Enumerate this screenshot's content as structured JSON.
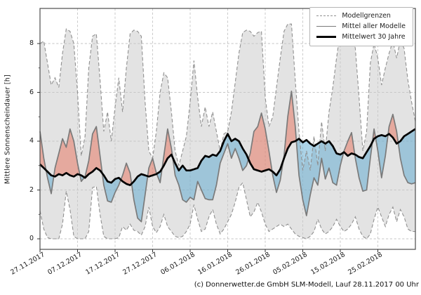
{
  "figure": {
    "y_axis": {
      "label": "Mittlere Sonnenscheindauer [h]",
      "tick_values": [
        0,
        2,
        4,
        6,
        8
      ]
    },
    "x_axis": {
      "tick_labels": [
        "27.11.2017",
        "07.12.2017",
        "17.12.2017",
        "27.12.2017",
        "06.01.2018",
        "16.01.2018",
        "26.01.2018",
        "05.02.2018",
        "15.02.2018",
        "25.02.2018"
      ],
      "tick_days": [
        0,
        10,
        20,
        30,
        40,
        50,
        60,
        70,
        80,
        90
      ]
    },
    "legend": {
      "items": [
        {
          "label": "Modellgrenzen",
          "style": "dashed-gray"
        },
        {
          "label": "Mittel aller Modelle",
          "style": "solid-gray"
        },
        {
          "label": "Mittelwert 30 Jahre",
          "style": "thick-black"
        }
      ]
    },
    "footer": "(c) Donnerwetter.de GmbH SLM-Modell, Lauf 28.11.2017 00 Uhr",
    "colors": {
      "envelope_fill": "#e3e3e3",
      "bound_line": "#909090",
      "model_mean_line": "#7a7a7a",
      "climate_mean_line": "#000000",
      "above_fill": "#e8705a",
      "below_fill": "#5aa7cf",
      "grid": "#c6c6c6",
      "frame": "#4d4d4d",
      "tick": "#333333"
    }
  },
  "chart_data": {
    "type": "line",
    "title": "",
    "xlabel": "",
    "ylabel": "Mittlere Sonnenscheindauer [h]",
    "x_range": {
      "start": 0,
      "end": 100,
      "step": 1,
      "unit": "days",
      "start_date": "27.11.2017"
    },
    "ylim": [
      -0.43,
      9.44
    ],
    "grid": true,
    "legend_position": "upper right",
    "series": [
      {
        "name": "Modellgrenzen (obere Grenze)",
        "style": "dashed",
        "values": [
          8.0,
          8.1,
          7.2,
          6.3,
          6.6,
          6.2,
          7.6,
          8.6,
          8.5,
          8.0,
          6.0,
          3.4,
          4.2,
          7.0,
          8.3,
          8.4,
          6.5,
          4.4,
          5.2,
          4.0,
          5.4,
          6.6,
          5.2,
          7.0,
          8.4,
          8.55,
          8.5,
          8.3,
          5.6,
          3.6,
          3.3,
          4.4,
          6.0,
          6.8,
          6.6,
          5.2,
          3.6,
          3.0,
          3.6,
          4.2,
          5.6,
          7.3,
          5.8,
          4.6,
          5.4,
          4.6,
          5.2,
          4.4,
          3.6,
          4.3,
          4.4,
          5.2,
          6.4,
          7.6,
          8.45,
          8.55,
          8.5,
          8.3,
          8.45,
          8.5,
          5.8,
          4.6,
          5.0,
          6.2,
          7.4,
          8.5,
          8.8,
          8.8,
          6.5,
          4.4,
          2.8,
          3.6,
          2.8,
          4.2,
          3.0,
          4.8,
          3.6,
          5.2,
          6.2,
          7.4,
          8.5,
          8.8,
          8.8,
          8.6,
          7.8,
          5.8,
          3.6,
          4.4,
          7.2,
          8.0,
          7.4,
          6.3,
          7.0,
          7.6,
          8.1,
          7.4,
          8.15,
          7.8,
          6.5,
          5.6,
          4.8
        ]
      },
      {
        "name": "Modellgrenzen (untere Grenze)",
        "style": "dashed",
        "values": [
          1.15,
          0.4,
          0.05,
          0.0,
          0.0,
          0.0,
          0.6,
          1.95,
          1.2,
          0.1,
          0.0,
          0.0,
          0.0,
          0.3,
          2.1,
          2.15,
          1.0,
          0.1,
          0.0,
          0.0,
          0.0,
          0.05,
          0.5,
          0.35,
          0.6,
          0.35,
          0.3,
          0.15,
          0.5,
          1.3,
          0.5,
          0.25,
          0.5,
          1.0,
          0.5,
          0.3,
          0.1,
          0.05,
          0.1,
          0.3,
          0.6,
          1.4,
          0.8,
          0.3,
          0.4,
          0.9,
          1.2,
          0.6,
          0.2,
          0.4,
          0.7,
          1.0,
          1.5,
          2.1,
          2.3,
          1.6,
          0.9,
          1.1,
          1.5,
          1.1,
          0.6,
          0.3,
          0.4,
          0.5,
          0.6,
          0.5,
          0.6,
          0.4,
          0.2,
          0.1,
          0.05,
          0.0,
          0.1,
          0.3,
          0.8,
          0.4,
          0.2,
          0.3,
          0.5,
          0.8,
          0.5,
          0.3,
          0.4,
          0.6,
          0.9,
          0.4,
          0.1,
          0.0,
          0.2,
          0.8,
          1.3,
          0.9,
          0.5,
          1.0,
          1.3,
          0.7,
          1.2,
          0.9,
          0.4,
          0.3,
          0.3
        ]
      },
      {
        "name": "Mittel aller Modelle",
        "style": "solid-gray",
        "values": [
          4.4,
          3.3,
          2.5,
          1.85,
          2.9,
          3.5,
          4.1,
          3.75,
          4.5,
          4.0,
          3.1,
          2.35,
          2.55,
          3.2,
          4.3,
          4.6,
          3.4,
          2.2,
          1.55,
          1.5,
          1.9,
          2.2,
          2.6,
          3.1,
          2.7,
          1.6,
          0.85,
          0.7,
          1.8,
          2.9,
          3.3,
          2.7,
          2.3,
          3.4,
          4.5,
          3.7,
          2.6,
          2.2,
          1.6,
          1.5,
          1.7,
          1.6,
          2.35,
          2.0,
          1.65,
          1.6,
          1.6,
          2.2,
          3.1,
          3.5,
          3.9,
          3.3,
          3.7,
          3.3,
          2.8,
          3.0,
          3.5,
          4.4,
          4.6,
          5.15,
          4.5,
          3.6,
          2.6,
          1.9,
          2.4,
          3.4,
          5.0,
          6.05,
          4.6,
          2.6,
          1.6,
          0.95,
          1.8,
          2.5,
          2.2,
          3.3,
          2.45,
          2.9,
          2.3,
          2.2,
          3.0,
          3.6,
          4.0,
          4.35,
          3.3,
          2.5,
          1.95,
          2.0,
          3.3,
          4.5,
          3.6,
          2.5,
          3.4,
          4.6,
          5.1,
          4.4,
          3.3,
          2.6,
          2.3,
          2.25,
          2.3
        ]
      },
      {
        "name": "Mittelwert 30 Jahre",
        "style": "solid-black-thick",
        "values": [
          3.05,
          2.9,
          2.75,
          2.6,
          2.55,
          2.65,
          2.6,
          2.7,
          2.6,
          2.55,
          2.65,
          2.6,
          2.5,
          2.65,
          2.75,
          2.9,
          2.8,
          2.6,
          2.35,
          2.3,
          2.45,
          2.5,
          2.35,
          2.25,
          2.2,
          2.35,
          2.55,
          2.65,
          2.6,
          2.55,
          2.6,
          2.65,
          2.75,
          3.0,
          3.3,
          3.45,
          3.1,
          2.8,
          3.0,
          2.8,
          2.8,
          2.85,
          2.9,
          3.2,
          3.4,
          3.35,
          3.45,
          3.4,
          3.6,
          4.0,
          4.3,
          4.0,
          4.1,
          4.0,
          3.7,
          3.45,
          3.1,
          2.85,
          2.8,
          2.75,
          2.8,
          2.85,
          2.75,
          2.6,
          2.85,
          3.3,
          3.7,
          3.95,
          4.0,
          4.1,
          3.95,
          4.05,
          3.9,
          3.8,
          3.9,
          4.0,
          3.9,
          4.0,
          3.8,
          3.5,
          3.45,
          3.55,
          3.4,
          3.5,
          3.45,
          3.35,
          3.3,
          3.55,
          3.8,
          4.1,
          4.2,
          4.25,
          4.2,
          4.3,
          4.15,
          3.9,
          4.0,
          4.2,
          4.3,
          4.4,
          4.5
        ]
      }
    ],
    "fills": [
      {
        "name": "Modellspanne (zwischen Modellgrenzen)",
        "color": "#e3e3e3"
      },
      {
        "name": "Modellmittel ueber 30-Jahre-Mittel",
        "color": "salmon"
      },
      {
        "name": "Modellmittel unter 30-Jahre-Mittel",
        "color": "lightblue"
      }
    ]
  }
}
